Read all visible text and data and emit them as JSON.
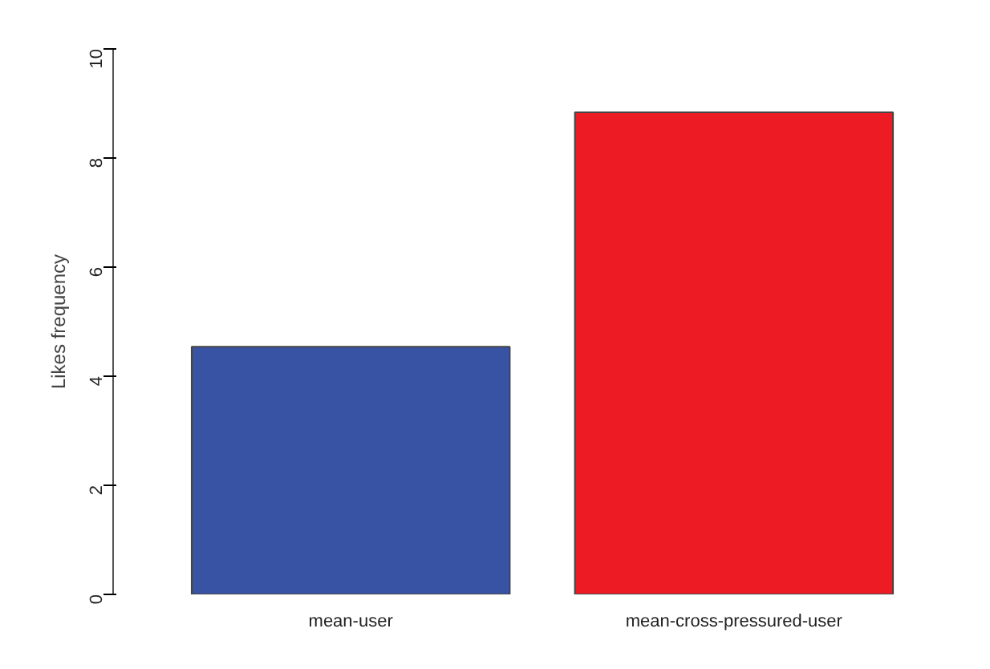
{
  "chart_data": {
    "type": "bar",
    "ylabel": "Likes frequency",
    "categories": [
      "mean-user",
      "mean-cross-pressured-user"
    ],
    "values": [
      4.54,
      8.84
    ],
    "colors": [
      "#3853a4",
      "#ed1c24"
    ],
    "ylim": [
      0,
      10
    ],
    "yticks": [
      0,
      2,
      4,
      6,
      8,
      10
    ]
  }
}
